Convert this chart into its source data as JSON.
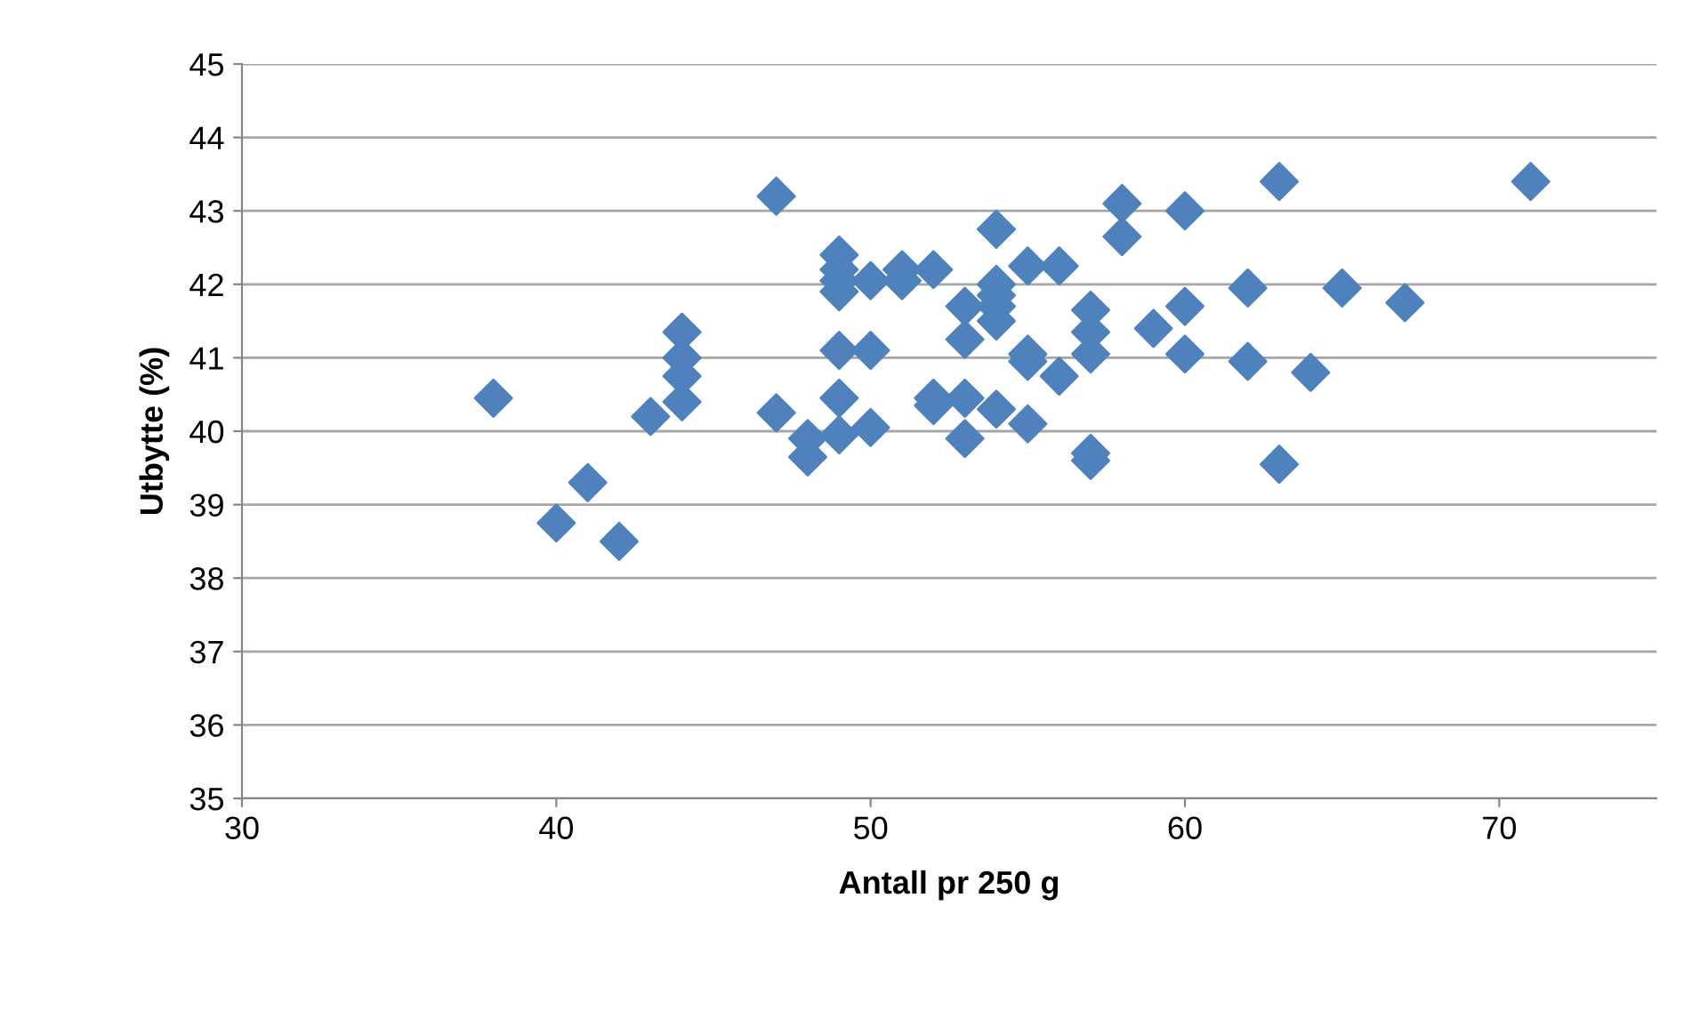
{
  "chart_data": {
    "type": "scatter",
    "xlabel": "Antall pr 250 g",
    "ylabel": "Utbytte (%)",
    "xlim": [
      30,
      75
    ],
    "xticks": [
      30,
      40,
      50,
      60,
      70
    ],
    "ylim": [
      35,
      45
    ],
    "yticks": [
      35,
      36,
      37,
      38,
      39,
      40,
      41,
      42,
      43,
      44,
      45
    ],
    "grid": "y",
    "marker": "diamond",
    "legend": false,
    "series": [
      {
        "color": "#4f81bd",
        "x": [
          38,
          40,
          41,
          42,
          43,
          44,
          44,
          44,
          44,
          47,
          47,
          48,
          48,
          49,
          49,
          49,
          49,
          49,
          49,
          49,
          50,
          50,
          50,
          51,
          51,
          52,
          52,
          52,
          53,
          53,
          53,
          53,
          54,
          54,
          54,
          54,
          54,
          54,
          55,
          55,
          55,
          55,
          56,
          56,
          57,
          57,
          57,
          57,
          57,
          58,
          58,
          59,
          60,
          60,
          60,
          62,
          62,
          63,
          63,
          64,
          65,
          67,
          71
        ],
        "values": [
          40.45,
          38.75,
          39.3,
          38.5,
          40.2,
          41.35,
          41.0,
          40.75,
          40.4,
          43.2,
          40.25,
          39.9,
          39.65,
          42.4,
          42.2,
          42.05,
          41.9,
          41.1,
          40.45,
          39.95,
          42.05,
          41.1,
          40.05,
          42.2,
          42.05,
          42.2,
          40.45,
          40.35,
          41.7,
          41.25,
          40.45,
          39.9,
          42.75,
          42.0,
          41.85,
          41.7,
          41.5,
          40.3,
          42.25,
          41.05,
          40.95,
          40.1,
          42.25,
          40.75,
          41.65,
          41.35,
          41.05,
          39.7,
          39.6,
          43.1,
          42.65,
          41.4,
          43.0,
          41.7,
          41.05,
          41.95,
          40.95,
          43.4,
          39.55,
          40.8,
          41.95,
          41.75,
          43.4
        ]
      }
    ]
  }
}
